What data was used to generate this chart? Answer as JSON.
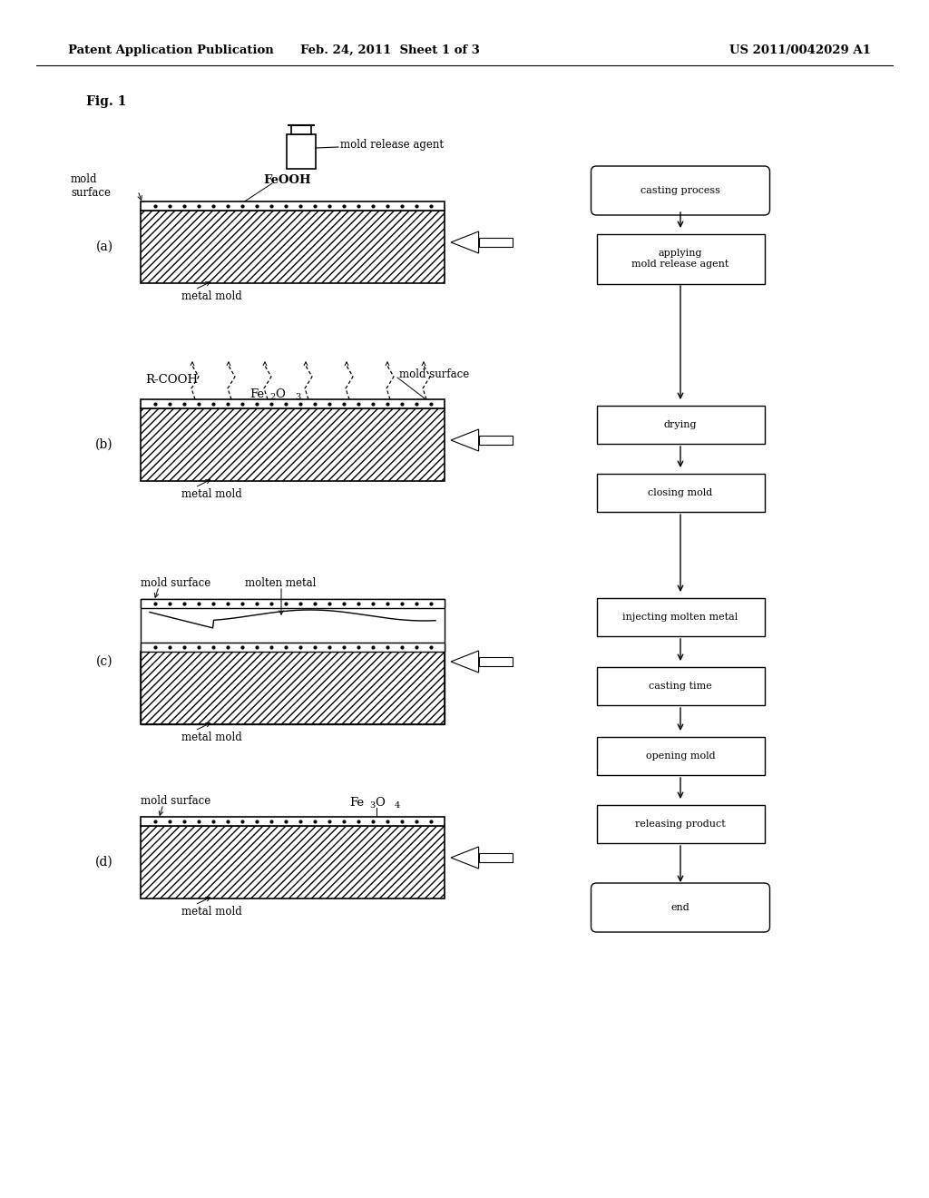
{
  "header_left": "Patent Application Publication",
  "header_mid": "Feb. 24, 2011  Sheet 1 of 3",
  "header_right": "US 2011/0042029 A1",
  "fig_label": "Fig. 1",
  "bg_color": "#ffffff"
}
